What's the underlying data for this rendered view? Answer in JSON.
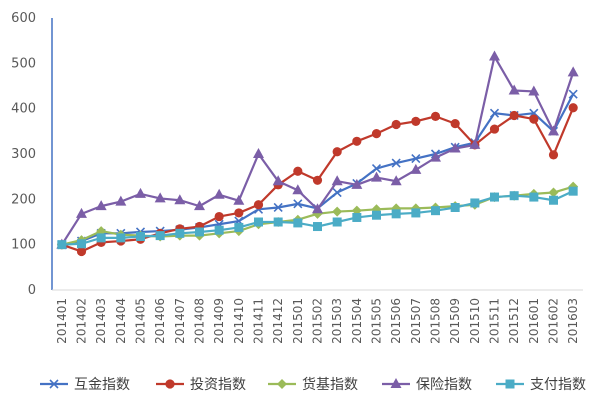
{
  "chart_data": {
    "type": "line",
    "title": "",
    "xlabel": "",
    "ylabel": "",
    "ylim": [
      0,
      600
    ],
    "yticks": [
      0,
      100,
      200,
      300,
      400,
      500,
      600
    ],
    "grid": false,
    "legend_position": "bottom",
    "categories": [
      "201401",
      "201402",
      "201403",
      "201404",
      "201405",
      "201406",
      "201407",
      "201408",
      "201409",
      "201410",
      "201411",
      "201412",
      "201501",
      "201502",
      "201503",
      "201504",
      "201505",
      "201506",
      "201507",
      "201508",
      "201509",
      "201510",
      "201511",
      "201512",
      "201601",
      "201602",
      "201603"
    ],
    "series": [
      {
        "name": "互金指数",
        "color": "#4472C4",
        "marker": "x",
        "values": [
          100,
          108,
          125,
          125,
          128,
          130,
          133,
          138,
          145,
          152,
          178,
          182,
          190,
          180,
          215,
          235,
          268,
          280,
          290,
          300,
          315,
          325,
          390,
          385,
          390,
          350,
          432
        ]
      },
      {
        "name": "投资指数",
        "color": "#C0392B",
        "marker": "circle",
        "values": [
          100,
          85,
          105,
          108,
          112,
          125,
          135,
          140,
          162,
          170,
          188,
          232,
          262,
          242,
          305,
          328,
          345,
          365,
          372,
          383,
          367,
          320,
          355,
          385,
          377,
          298,
          402
        ]
      },
      {
        "name": "货基指数",
        "color": "#9BBB59",
        "marker": "diamond",
        "values": [
          100,
          110,
          130,
          122,
          120,
          118,
          120,
          120,
          125,
          130,
          145,
          150,
          155,
          168,
          173,
          175,
          178,
          180,
          180,
          182,
          185,
          188,
          205,
          208,
          212,
          215,
          228
        ]
      },
      {
        "name": "保险指数",
        "color": "#7B5EA7",
        "marker": "triangle",
        "values": [
          100,
          168,
          185,
          195,
          212,
          202,
          198,
          185,
          210,
          197,
          300,
          240,
          220,
          178,
          240,
          232,
          248,
          240,
          265,
          292,
          312,
          320,
          515,
          440,
          438,
          350,
          480
        ]
      },
      {
        "name": "支付指数",
        "color": "#4BACC6",
        "marker": "square",
        "values": [
          100,
          102,
          115,
          115,
          118,
          120,
          125,
          128,
          132,
          138,
          150,
          150,
          148,
          140,
          150,
          160,
          165,
          168,
          170,
          175,
          182,
          192,
          205,
          208,
          205,
          198,
          218
        ]
      }
    ]
  }
}
